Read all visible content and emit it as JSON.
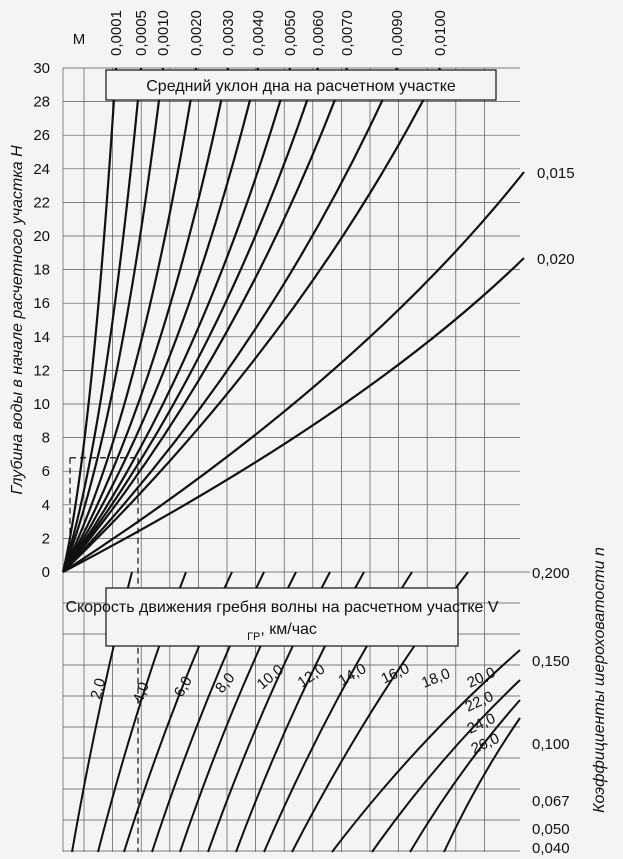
{
  "chart_data": [
    {
      "type": "line",
      "title": "Средний уклон дна на расчетном участке",
      "ylabel": "Глубина воды в начале расчетного участка H",
      "ylim": [
        0,
        30
      ],
      "y_ticks": [
        "0",
        "2",
        "4",
        "6",
        "8",
        "10",
        "12",
        "14",
        "16",
        "18",
        "20",
        "22",
        "24",
        "26",
        "28",
        "30"
      ],
      "slope_axis_label": "М",
      "series": [
        {
          "name": "0,0001",
          "end_x": 0.0001
        },
        {
          "name": "0,0005",
          "end_x": 0.0005
        },
        {
          "name": "0,0010",
          "end_x": 0.001
        },
        {
          "name": "0,0020",
          "end_x": 0.002
        },
        {
          "name": "0,0030",
          "end_x": 0.003
        },
        {
          "name": "0,0040",
          "end_x": 0.004
        },
        {
          "name": "0,0050",
          "end_x": 0.005
        },
        {
          "name": "0,0060",
          "end_x": 0.006
        },
        {
          "name": "0,0070",
          "end_x": 0.007
        },
        {
          "name": "0,0090",
          "end_x": 0.009
        },
        {
          "name": "0,0100",
          "end_x": 0.01
        },
        {
          "name": "0,015",
          "end_x": 0.015
        },
        {
          "name": "0,020",
          "end_x": 0.02
        }
      ]
    },
    {
      "type": "line",
      "title": "Скорость движения гребня волны на расчетном участке V",
      "title_subscript": "ГР",
      "title_suffix": ", км/час",
      "ylabel": "Коэффициенты шероховатости n",
      "n_ticks": [
        "0,200",
        "0,150",
        "0,100",
        "0,067",
        "0,050",
        "0,040"
      ],
      "series": [
        {
          "name": "2,0",
          "value": 2.0
        },
        {
          "name": "4,0",
          "value": 4.0
        },
        {
          "name": "6,0",
          "value": 6.0
        },
        {
          "name": "8,0",
          "value": 8.0
        },
        {
          "name": "10,0",
          "value": 10.0
        },
        {
          "name": "12,0",
          "value": 12.0
        },
        {
          "name": "14,0",
          "value": 14.0
        },
        {
          "name": "16,0",
          "value": 16.0
        },
        {
          "name": "18,0",
          "value": 18.0
        },
        {
          "name": "20,0",
          "value": 20.0
        },
        {
          "name": "22,0",
          "value": 22.0
        },
        {
          "name": "24,0",
          "value": 24.0
        },
        {
          "name": "26,0",
          "value": 26.0
        }
      ]
    }
  ],
  "example": {
    "H": 6.8,
    "V": 4.0
  }
}
